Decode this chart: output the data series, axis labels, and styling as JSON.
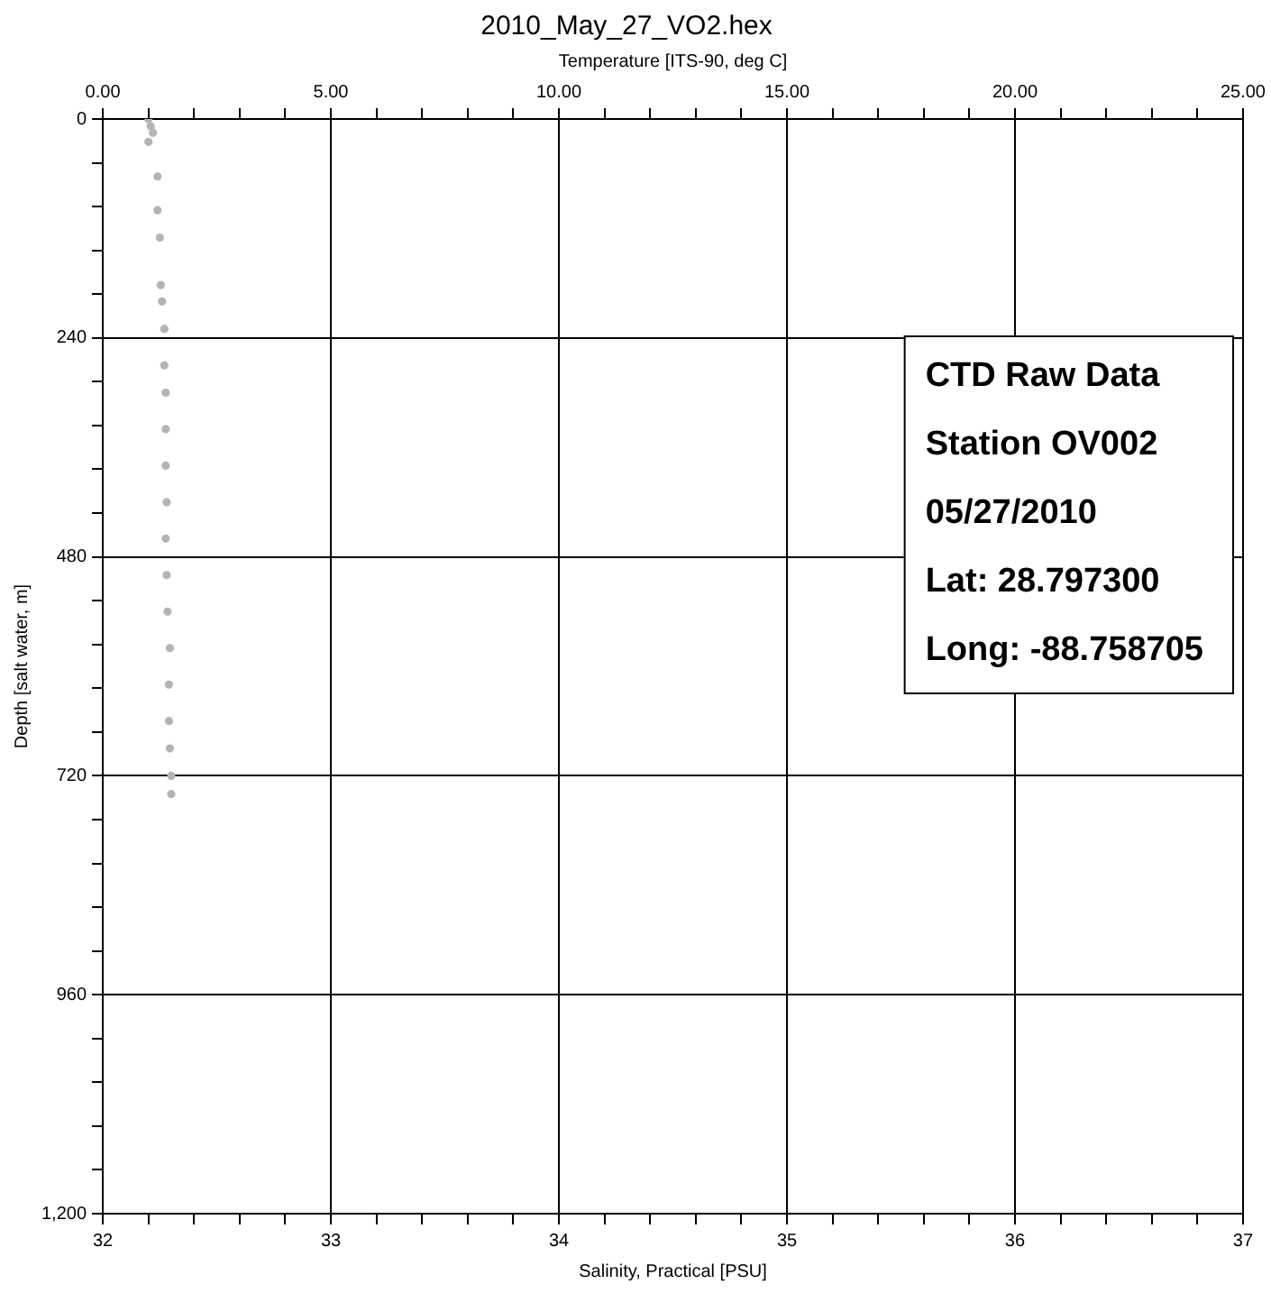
{
  "chart_data": {
    "type": "scatter",
    "title": "2010_May_27_VO2.hex",
    "xlabel": "Temperature [ITS-90, deg C]",
    "ylabel": "Depth [salt water, m]",
    "x2label": "Salinity, Practical [PSU]",
    "annotations": [
      "CTD Raw Data",
      "Station OV002",
      "05/27/2010",
      "Lat: 28.797300",
      "Long: -88.758705"
    ],
    "series": [
      {
        "color": "#b4b4b4",
        "x": [
          1.0,
          1.05,
          1.1,
          1.0,
          1.2,
          1.2,
          1.25,
          1.27,
          1.3,
          1.35,
          1.35,
          1.38,
          1.38,
          1.38,
          1.4,
          1.38,
          1.4,
          1.42,
          1.47,
          1.45,
          1.45,
          1.47,
          1.5,
          1.5
        ],
        "values": [
          0,
          8,
          15,
          25,
          63,
          100,
          130,
          182,
          200,
          230,
          270,
          300,
          340,
          380,
          420,
          460,
          500,
          540,
          580,
          620,
          660,
          690,
          720,
          740
        ]
      }
    ],
    "marker": "circle",
    "xlim": [
      0,
      25
    ],
    "xticks": [
      {
        "value": 0,
        "label": "0.00"
      },
      {
        "value": 1,
        "label": null
      },
      {
        "value": 2,
        "label": null
      },
      {
        "value": 3,
        "label": null
      },
      {
        "value": 4,
        "label": null
      },
      {
        "value": 5,
        "label": "5.00"
      },
      {
        "value": 6,
        "label": null
      },
      {
        "value": 7,
        "label": null
      },
      {
        "value": 8,
        "label": null
      },
      {
        "value": 9,
        "label": null
      },
      {
        "value": 10,
        "label": "10.00"
      },
      {
        "value": 11,
        "label": null
      },
      {
        "value": 12,
        "label": null
      },
      {
        "value": 13,
        "label": null
      },
      {
        "value": 14,
        "label": null
      },
      {
        "value": 15,
        "label": "15.00"
      },
      {
        "value": 16,
        "label": null
      },
      {
        "value": 17,
        "label": null
      },
      {
        "value": 18,
        "label": null
      },
      {
        "value": 19,
        "label": null
      },
      {
        "value": 20,
        "label": "20.00"
      },
      {
        "value": 21,
        "label": null
      },
      {
        "value": 22,
        "label": null
      },
      {
        "value": 23,
        "label": null
      },
      {
        "value": 24,
        "label": null
      },
      {
        "value": 25,
        "label": "25.00"
      }
    ],
    "ylim": [
      1200,
      0
    ],
    "yticks": [
      0,
      {
        "value": 48,
        "label": null
      },
      {
        "value": 96,
        "label": null
      },
      {
        "value": 144,
        "label": null
      },
      {
        "value": 192,
        "label": null
      },
      240,
      {
        "value": 288,
        "label": null
      },
      {
        "value": 336,
        "label": null
      },
      {
        "value": 384,
        "label": null
      },
      {
        "value": 432,
        "label": null
      },
      480,
      {
        "value": 528,
        "label": null
      },
      {
        "value": 576,
        "label": null
      },
      {
        "value": 624,
        "label": null
      },
      {
        "value": 672,
        "label": null
      },
      720,
      {
        "value": 768,
        "label": null
      },
      {
        "value": 816,
        "label": null
      },
      {
        "value": 864,
        "label": null
      },
      {
        "value": 912,
        "label": null
      },
      960,
      {
        "value": 1008,
        "label": null
      },
      {
        "value": 1056,
        "label": null
      },
      {
        "value": 1104,
        "label": null
      },
      {
        "value": 1152,
        "label": null
      },
      {
        "value": 1200,
        "label": "1,200"
      }
    ],
    "x2lim": [
      32,
      37
    ],
    "x2ticks": [
      32,
      {
        "value": 32.2,
        "label": null
      },
      {
        "value": 32.4,
        "label": null
      },
      {
        "value": 32.6,
        "label": null
      },
      {
        "value": 32.8,
        "label": null
      },
      33,
      {
        "value": 33.2,
        "label": null
      },
      {
        "value": 33.4,
        "label": null
      },
      {
        "value": 33.6,
        "label": null
      },
      {
        "value": 33.8,
        "label": null
      },
      34,
      {
        "value": 34.2,
        "label": null
      },
      {
        "value": 34.4,
        "label": null
      },
      {
        "value": 34.6,
        "label": null
      },
      {
        "value": 34.8,
        "label": null
      },
      35,
      {
        "value": 35.2,
        "label": null
      },
      {
        "value": 35.4,
        "label": null
      },
      {
        "value": 35.6,
        "label": null
      },
      {
        "value": 35.8,
        "label": null
      },
      36,
      {
        "value": 36.2,
        "label": null
      },
      {
        "value": 36.4,
        "label": null
      },
      {
        "value": 36.6,
        "label": null
      },
      {
        "value": 36.8,
        "label": null
      },
      37
    ],
    "grid": true,
    "legend": false
  }
}
